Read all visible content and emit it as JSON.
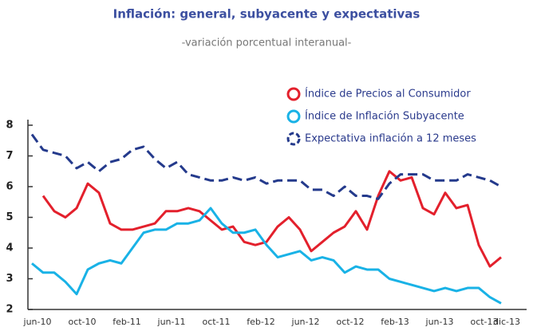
{
  "chart_data": {
    "type": "line",
    "title": "Inflación: general, subyacente y expectativas",
    "subtitle": "-variación porcentual interanual-",
    "categories": [
      "jun-10",
      null,
      null,
      null,
      "oct-10",
      null,
      null,
      null,
      "feb-11",
      null,
      null,
      null,
      "jun-11",
      null,
      null,
      null,
      "oct-11",
      null,
      null,
      null,
      "feb-12",
      null,
      null,
      null,
      "jun-12",
      null,
      null,
      null,
      "oct-12",
      null,
      null,
      null,
      "feb-13",
      null,
      null,
      null,
      "jun-13",
      null,
      null,
      null,
      "oct-13",
      null,
      "dic-13"
    ],
    "series": [
      {
        "name": "Índice de Precios al  Consumidor",
        "color": "#e3202c",
        "dashed": false,
        "values": [
          null,
          5.7,
          5.2,
          5.0,
          5.3,
          6.1,
          5.8,
          4.8,
          4.6,
          4.6,
          4.7,
          4.8,
          5.2,
          5.2,
          5.3,
          5.2,
          4.9,
          4.6,
          4.7,
          4.2,
          4.1,
          4.2,
          4.7,
          5.0,
          4.6,
          3.9,
          4.2,
          4.5,
          4.7,
          5.2,
          4.6,
          5.7,
          6.5,
          6.2,
          6.3,
          5.3,
          5.1,
          5.8,
          5.3,
          5.4,
          4.1,
          3.4,
          3.7
        ]
      },
      {
        "name": "Índice de Inflación Subyacente",
        "color": "#19b2e6",
        "dashed": false,
        "values": [
          3.5,
          3.2,
          3.2,
          2.9,
          2.5,
          3.3,
          3.5,
          3.6,
          3.5,
          4.0,
          4.5,
          4.6,
          4.6,
          4.8,
          4.8,
          4.9,
          5.3,
          4.8,
          4.5,
          4.5,
          4.6,
          4.1,
          3.7,
          3.8,
          3.9,
          3.6,
          3.7,
          3.6,
          3.2,
          3.4,
          3.3,
          3.3,
          3.0,
          2.9,
          2.8,
          2.7,
          2.6,
          2.7,
          2.6,
          2.7,
          2.7,
          2.4,
          2.2
        ]
      },
      {
        "name": "Expectativa inflación a 12 meses",
        "color": "#243a8c",
        "dashed": true,
        "values": [
          7.7,
          7.2,
          7.1,
          7.0,
          6.6,
          6.8,
          6.5,
          6.8,
          6.9,
          7.2,
          7.3,
          6.9,
          6.6,
          6.8,
          6.4,
          6.3,
          6.2,
          6.2,
          6.3,
          6.2,
          6.3,
          6.1,
          6.2,
          6.2,
          6.2,
          5.9,
          5.9,
          5.7,
          6.0,
          5.7,
          5.7,
          5.6,
          6.1,
          6.4,
          6.4,
          6.4,
          6.2,
          6.2,
          6.2,
          6.4,
          6.3,
          6.2,
          6.0
        ]
      }
    ],
    "ylim": [
      2,
      8
    ],
    "yticks": [
      2,
      3,
      4,
      5,
      6,
      7,
      8
    ],
    "grid": false,
    "legend": "top-right"
  }
}
